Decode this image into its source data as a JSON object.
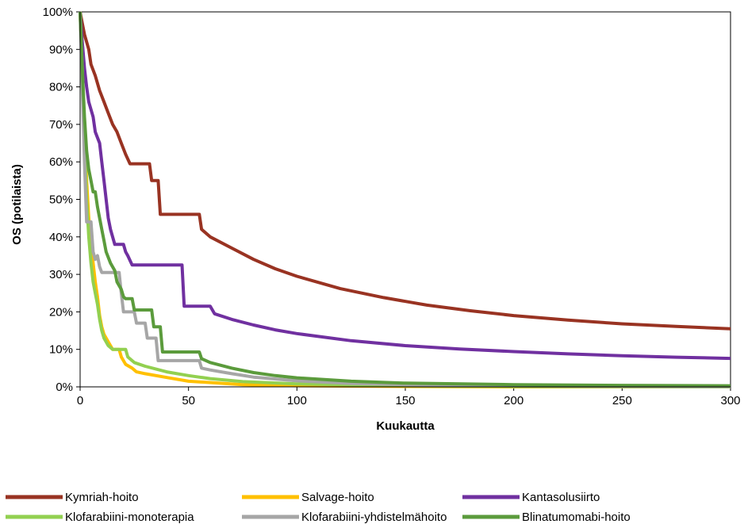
{
  "chart_data": {
    "type": "line",
    "xlabel": "Kuukautta",
    "ylabel": "OS (potilaista)",
    "xlim": [
      0,
      300
    ],
    "ylim": [
      0,
      1
    ],
    "x_ticks": [
      0,
      50,
      100,
      150,
      200,
      250,
      300
    ],
    "y_ticks": [
      0,
      0.1,
      0.2,
      0.3,
      0.4,
      0.5,
      0.6,
      0.7,
      0.8,
      0.9,
      1.0
    ],
    "y_tick_labels": [
      "0%",
      "10%",
      "20%",
      "30%",
      "40%",
      "50%",
      "60%",
      "70%",
      "80%",
      "90%",
      "100%"
    ],
    "grid": false,
    "legend_position": "bottom",
    "series": [
      {
        "name": "Kymriah-hoito",
        "color": "#993322",
        "points": [
          [
            0,
            1.0
          ],
          [
            1,
            0.97
          ],
          [
            2,
            0.94
          ],
          [
            4,
            0.9
          ],
          [
            5,
            0.86
          ],
          [
            7,
            0.83
          ],
          [
            9,
            0.79
          ],
          [
            11,
            0.76
          ],
          [
            13,
            0.73
          ],
          [
            15,
            0.7
          ],
          [
            17,
            0.68
          ],
          [
            19,
            0.65
          ],
          [
            21,
            0.62
          ],
          [
            23,
            0.595
          ],
          [
            32,
            0.595
          ],
          [
            33,
            0.55
          ],
          [
            36,
            0.55
          ],
          [
            37,
            0.46
          ],
          [
            55,
            0.46
          ],
          [
            56,
            0.42
          ],
          [
            60,
            0.4
          ],
          [
            70,
            0.37
          ],
          [
            80,
            0.34
          ],
          [
            90,
            0.315
          ],
          [
            100,
            0.295
          ],
          [
            120,
            0.262
          ],
          [
            140,
            0.238
          ],
          [
            160,
            0.218
          ],
          [
            180,
            0.203
          ],
          [
            200,
            0.19
          ],
          [
            225,
            0.178
          ],
          [
            250,
            0.168
          ],
          [
            275,
            0.161
          ],
          [
            300,
            0.155
          ]
        ]
      },
      {
        "name": "Salvage-hoito",
        "color": "#ffc000",
        "points": [
          [
            0,
            1.0
          ],
          [
            1,
            0.85
          ],
          [
            2,
            0.68
          ],
          [
            3,
            0.55
          ],
          [
            4,
            0.45
          ],
          [
            5,
            0.39
          ],
          [
            6,
            0.33
          ],
          [
            7,
            0.28
          ],
          [
            8,
            0.24
          ],
          [
            9,
            0.19
          ],
          [
            10,
            0.16
          ],
          [
            11,
            0.14
          ],
          [
            13,
            0.12
          ],
          [
            15,
            0.1
          ],
          [
            18,
            0.1
          ],
          [
            19,
            0.08
          ],
          [
            21,
            0.06
          ],
          [
            24,
            0.05
          ],
          [
            26,
            0.04
          ],
          [
            30,
            0.035
          ],
          [
            40,
            0.025
          ],
          [
            50,
            0.015
          ],
          [
            75,
            0.006
          ],
          [
            100,
            0.003
          ],
          [
            150,
            0.001
          ],
          [
            200,
            0.0
          ],
          [
            300,
            0.0
          ]
        ]
      },
      {
        "name": "Kantasolusiirto",
        "color": "#7030a0",
        "points": [
          [
            0,
            1.0
          ],
          [
            1,
            0.92
          ],
          [
            2,
            0.85
          ],
          [
            3,
            0.8
          ],
          [
            4,
            0.76
          ],
          [
            6,
            0.72
          ],
          [
            7,
            0.68
          ],
          [
            9,
            0.65
          ],
          [
            10,
            0.6
          ],
          [
            11,
            0.55
          ],
          [
            12,
            0.5
          ],
          [
            13,
            0.45
          ],
          [
            14,
            0.42
          ],
          [
            16,
            0.38
          ],
          [
            20,
            0.38
          ],
          [
            21,
            0.36
          ],
          [
            22,
            0.35
          ],
          [
            24,
            0.325
          ],
          [
            47,
            0.325
          ],
          [
            48,
            0.215
          ],
          [
            60,
            0.215
          ],
          [
            62,
            0.195
          ],
          [
            70,
            0.18
          ],
          [
            80,
            0.165
          ],
          [
            90,
            0.152
          ],
          [
            100,
            0.142
          ],
          [
            125,
            0.123
          ],
          [
            150,
            0.11
          ],
          [
            175,
            0.101
          ],
          [
            200,
            0.094
          ],
          [
            225,
            0.088
          ],
          [
            250,
            0.083
          ],
          [
            275,
            0.079
          ],
          [
            300,
            0.076
          ]
        ]
      },
      {
        "name": "Klofarabiini-monoterapia",
        "color": "#92d050",
        "points": [
          [
            0,
            1.0
          ],
          [
            1,
            0.85
          ],
          [
            2,
            0.66
          ],
          [
            3,
            0.5
          ],
          [
            4,
            0.4
          ],
          [
            5,
            0.33
          ],
          [
            6,
            0.28
          ],
          [
            7,
            0.25
          ],
          [
            8,
            0.22
          ],
          [
            9,
            0.18
          ],
          [
            10,
            0.15
          ],
          [
            11,
            0.13
          ],
          [
            13,
            0.11
          ],
          [
            15,
            0.1
          ],
          [
            21,
            0.1
          ],
          [
            22,
            0.08
          ],
          [
            25,
            0.065
          ],
          [
            30,
            0.055
          ],
          [
            40,
            0.04
          ],
          [
            50,
            0.03
          ],
          [
            60,
            0.022
          ],
          [
            75,
            0.014
          ],
          [
            100,
            0.008
          ],
          [
            150,
            0.003
          ],
          [
            200,
            0.001
          ],
          [
            300,
            0.0
          ]
        ]
      },
      {
        "name": "Klofarabiini-yhdistelmähoito",
        "color": "#a6a6a6",
        "points": [
          [
            0,
            1.0
          ],
          [
            1,
            0.8
          ],
          [
            2,
            0.6
          ],
          [
            3,
            0.44
          ],
          [
            5,
            0.44
          ],
          [
            6,
            0.36
          ],
          [
            7,
            0.34
          ],
          [
            8,
            0.35
          ],
          [
            9,
            0.32
          ],
          [
            10,
            0.305
          ],
          [
            18,
            0.305
          ],
          [
            19,
            0.25
          ],
          [
            20,
            0.2
          ],
          [
            25,
            0.2
          ],
          [
            26,
            0.17
          ],
          [
            30,
            0.17
          ],
          [
            31,
            0.13
          ],
          [
            35,
            0.13
          ],
          [
            36,
            0.07
          ],
          [
            55,
            0.07
          ],
          [
            56,
            0.05
          ],
          [
            60,
            0.045
          ],
          [
            70,
            0.035
          ],
          [
            80,
            0.026
          ],
          [
            100,
            0.016
          ],
          [
            125,
            0.009
          ],
          [
            150,
            0.006
          ],
          [
            200,
            0.003
          ],
          [
            250,
            0.0015
          ],
          [
            300,
            0.001
          ]
        ]
      },
      {
        "name": "Blinatumomabi-hoito",
        "color": "#5b9b3c",
        "points": [
          [
            0,
            1.0
          ],
          [
            1,
            0.85
          ],
          [
            2,
            0.72
          ],
          [
            3,
            0.63
          ],
          [
            4,
            0.58
          ],
          [
            5,
            0.55
          ],
          [
            6,
            0.52
          ],
          [
            7,
            0.52
          ],
          [
            8,
            0.48
          ],
          [
            9,
            0.45
          ],
          [
            10,
            0.42
          ],
          [
            11,
            0.39
          ],
          [
            12,
            0.36
          ],
          [
            14,
            0.33
          ],
          [
            16,
            0.31
          ],
          [
            17,
            0.28
          ],
          [
            19,
            0.26
          ],
          [
            20,
            0.24
          ],
          [
            21,
            0.235
          ],
          [
            24,
            0.235
          ],
          [
            25,
            0.205
          ],
          [
            33,
            0.205
          ],
          [
            34,
            0.16
          ],
          [
            37,
            0.16
          ],
          [
            38,
            0.093
          ],
          [
            55,
            0.093
          ],
          [
            56,
            0.075
          ],
          [
            60,
            0.065
          ],
          [
            70,
            0.05
          ],
          [
            80,
            0.038
          ],
          [
            90,
            0.03
          ],
          [
            100,
            0.024
          ],
          [
            125,
            0.015
          ],
          [
            150,
            0.01
          ],
          [
            200,
            0.006
          ],
          [
            250,
            0.004
          ],
          [
            300,
            0.003
          ]
        ]
      }
    ]
  }
}
